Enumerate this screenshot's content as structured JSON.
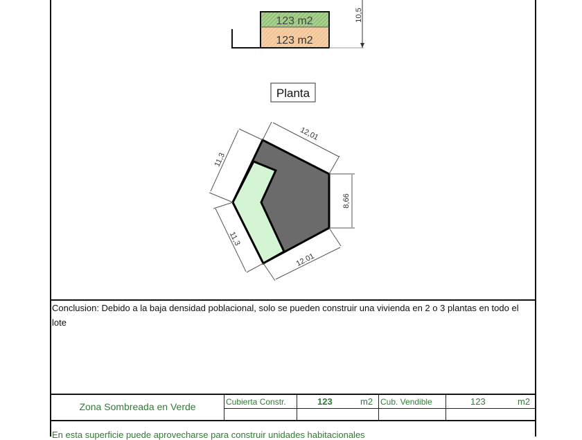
{
  "drawing": {
    "area_green": "123 m2",
    "area_orange": "123 m2",
    "height_dim": "10,5",
    "plan_label": "Planta",
    "dims": {
      "top": "12,01",
      "left_top": "11,3",
      "right": "8,66",
      "left_bottom": "11,3",
      "bottom": "12.01"
    },
    "colors": {
      "built": "#6b6b6b",
      "green_zone": "#d4f5d4",
      "hatch_green": "#a8d08d",
      "hatch_orange": "#f8cfa5"
    }
  },
  "conclusion": "Conclusion: Debido a la baja densidad poblacional, solo se pueden construir una vivienda en 2 o 3 plantas en todo el lote",
  "summary": {
    "zone_label": "Zona Sombreada en Verde",
    "cubierta_label": "Cubierta Constr.",
    "cubierta_value": "123",
    "cubierta_unit": "m2",
    "vendible_label": "Cub. Vendible",
    "vendible_value": "123",
    "vendible_unit": "m2"
  },
  "footer_note": "En esta superficie puede aprovecharse para construir unidades habitacionales"
}
